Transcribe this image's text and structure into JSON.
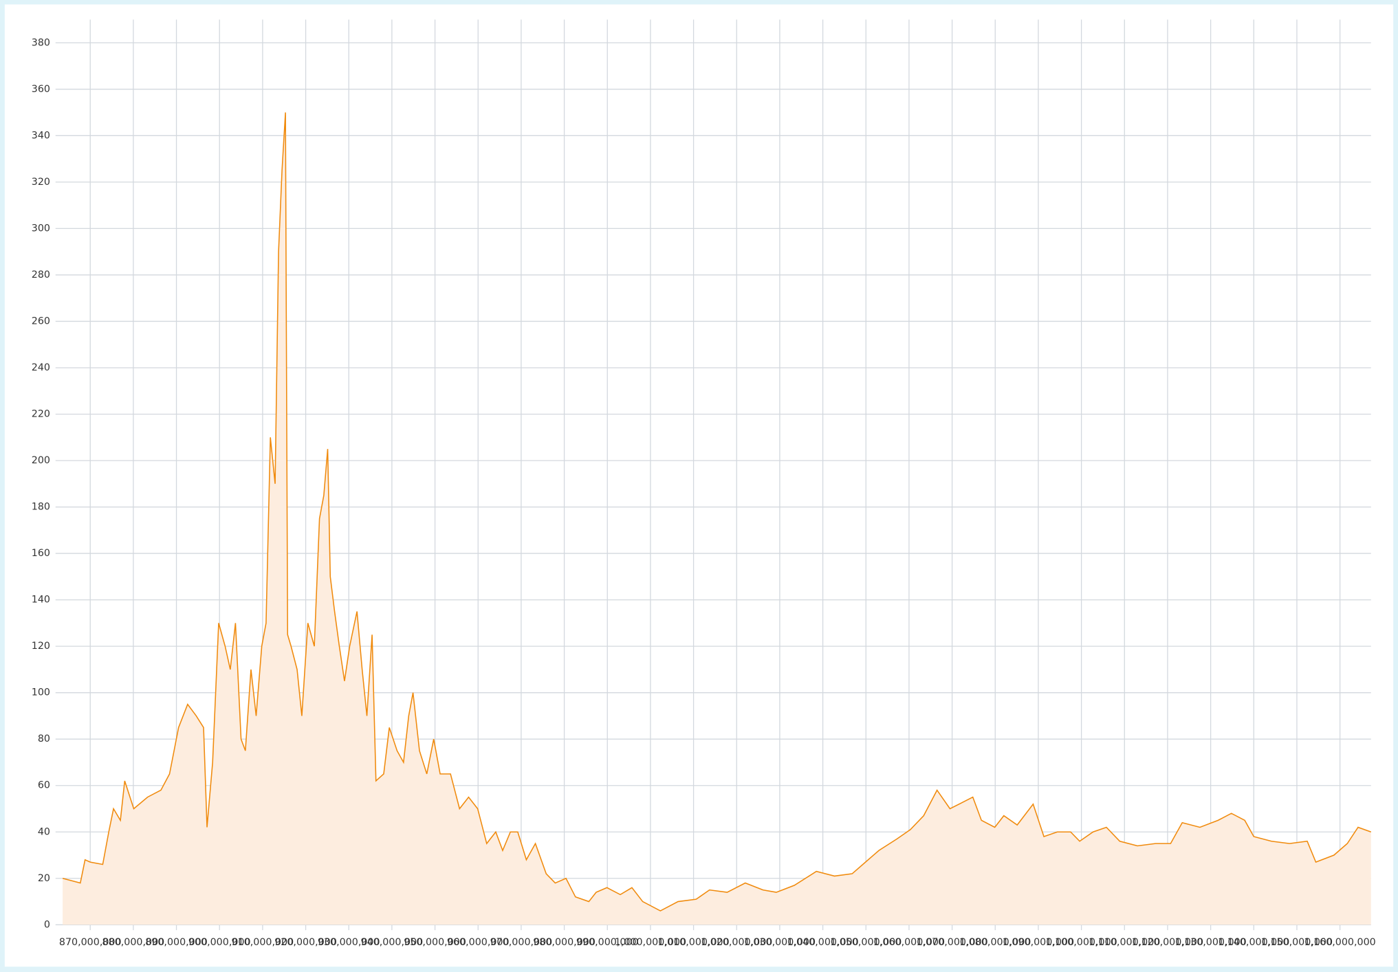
{
  "chart_data": {
    "type": "area",
    "x": [
      863600000,
      867700000,
      868800000,
      870000000,
      872900000,
      874300000,
      875400000,
      877000000,
      878000000,
      880100000,
      883300000,
      886400000,
      888400000,
      890500000,
      892600000,
      894600000,
      896300000,
      897100000,
      898400000,
      899800000,
      901300000,
      902500000,
      903700000,
      905000000,
      906000000,
      907300000,
      908500000,
      909800000,
      910800000,
      911800000,
      912900000,
      913700000,
      914500000,
      915300000,
      915800000,
      916600000,
      918000000,
      919100000,
      920500000,
      922000000,
      923200000,
      924200000,
      925100000,
      925700000,
      926700000,
      927800000,
      929000000,
      930200000,
      931900000,
      933100000,
      934200000,
      935400000,
      936300000,
      938100000,
      939400000,
      941200000,
      942700000,
      943900000,
      944900000,
      946400000,
      948100000,
      949700000,
      951200000,
      953600000,
      955700000,
      957800000,
      959900000,
      962000000,
      964100000,
      965700000,
      967500000,
      969200000,
      971200000,
      973300000,
      975800000,
      977900000,
      980400000,
      982600000,
      985700000,
      987400000,
      989900000,
      993000000,
      995700000,
      998200000,
      1002300000,
      1006400000,
      1010600000,
      1013700000,
      1017800000,
      1022000000,
      1026100000,
      1029200000,
      1033400000,
      1038500000,
      1042700000,
      1046800000,
      1049900000,
      1053000000,
      1057200000,
      1060300000,
      1063400000,
      1066500000,
      1069500000,
      1072700000,
      1074800000,
      1076800000,
      1079900000,
      1082000000,
      1085100000,
      1088800000,
      1091300000,
      1094400000,
      1097500000,
      1099600000,
      1102700000,
      1105800000,
      1108900000,
      1113000000,
      1117200000,
      1120700000,
      1123400000,
      1127500000,
      1131700000,
      1134800000,
      1137900000,
      1140000000,
      1144100000,
      1148300000,
      1152400000,
      1154400000,
      1158600000,
      1161700000,
      1164200000,
      1167200000
    ],
    "series": [
      {
        "color": "#f08a0c",
        "fill": "#fdeddf",
        "values": [
          20,
          18,
          28,
          27,
          26,
          40,
          50,
          45,
          62,
          50,
          55,
          58,
          65,
          85,
          95,
          90,
          85,
          42,
          70,
          130,
          120,
          110,
          130,
          80,
          75,
          110,
          90,
          120,
          130,
          210,
          190,
          290,
          325,
          350,
          125,
          120,
          110,
          90,
          130,
          120,
          175,
          185,
          205,
          150,
          135,
          120,
          105,
          120,
          135,
          110,
          90,
          125,
          62,
          65,
          85,
          75,
          70,
          90,
          100,
          75,
          65,
          80,
          65,
          65,
          50,
          55,
          50,
          35,
          40,
          32,
          40,
          40,
          28,
          35,
          22,
          18,
          20,
          12,
          10,
          14,
          16,
          13,
          16,
          10,
          6,
          10,
          11,
          15,
          14,
          18,
          15,
          14,
          17,
          23,
          21,
          22,
          27,
          32,
          37,
          41,
          47,
          58,
          50,
          53,
          55,
          45,
          42,
          47,
          43,
          52,
          38,
          40,
          40,
          36,
          40,
          42,
          36,
          34,
          35,
          35,
          44,
          42,
          45,
          48,
          45,
          38,
          36,
          35,
          36,
          27,
          30,
          35,
          42,
          40
        ]
      }
    ],
    "xlim": [
      863600000,
      1167200000
    ],
    "xticks": [
      {
        "value": 870000000,
        "label": "870,000,000"
      },
      {
        "value": 880000000,
        "label": "880,000,000"
      },
      {
        "value": 890000000,
        "label": "890,000,000"
      },
      {
        "value": 900000000,
        "label": "900,000,000"
      },
      {
        "value": 910000000,
        "label": "910,000,000"
      },
      {
        "value": 920000000,
        "label": "920,000,000"
      },
      {
        "value": 930000000,
        "label": "930,000,000"
      },
      {
        "value": 940000000,
        "label": "940,000,000"
      },
      {
        "value": 950000000,
        "label": "950,000,000"
      },
      {
        "value": 960000000,
        "label": "960,000,000"
      },
      {
        "value": 970000000,
        "label": "970,000,000"
      },
      {
        "value": 980000000,
        "label": "980,000,000"
      },
      {
        "value": 990000000,
        "label": "990,000,000"
      },
      {
        "value": 1000000000,
        "label": "1,000,000,000"
      },
      {
        "value": 1010000000,
        "label": "1,010,000,000"
      },
      {
        "value": 1020000000,
        "label": "1,020,000,000"
      },
      {
        "value": 1030000000,
        "label": "1,030,000,000"
      },
      {
        "value": 1040000000,
        "label": "1,040,000,000"
      },
      {
        "value": 1050000000,
        "label": "1,050,000,000"
      },
      {
        "value": 1060000000,
        "label": "1,060,000,000"
      },
      {
        "value": 1070000000,
        "label": "1,070,000,000"
      },
      {
        "value": 1080000000,
        "label": "1,080,000,000"
      },
      {
        "value": 1090000000,
        "label": "1,090,000,000"
      },
      {
        "value": 1100000000,
        "label": "1,100,000,000"
      },
      {
        "value": 1110000000,
        "label": "1,110,000,000"
      },
      {
        "value": 1120000000,
        "label": "1,120,000,000"
      },
      {
        "value": 1130000000,
        "label": "1,130,000,000"
      },
      {
        "value": 1140000000,
        "label": "1,140,000,000"
      },
      {
        "value": 1150000000,
        "label": "1,150,000,000"
      },
      {
        "value": 1160000000,
        "label": "1,160,000,000"
      }
    ],
    "ylim": [
      0,
      390
    ],
    "yticks": [
      0,
      20,
      40,
      60,
      80,
      100,
      120,
      140,
      160,
      180,
      200,
      220,
      240,
      260,
      280,
      300,
      320,
      340,
      360,
      380
    ],
    "grid": true
  }
}
